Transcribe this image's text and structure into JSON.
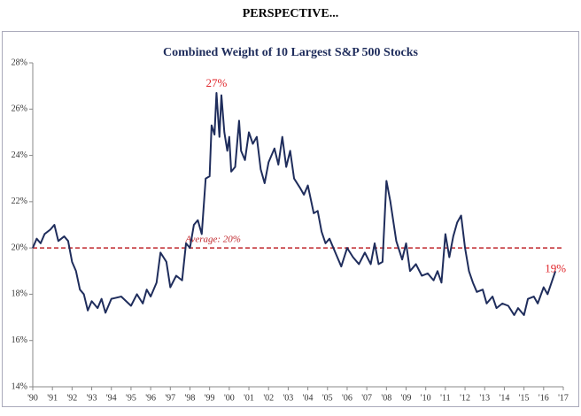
{
  "header": {
    "title": "PERSPECTIVE..."
  },
  "chart_data": {
    "type": "line",
    "title": "Combined Weight of 10 Largest S&P 500 Stocks",
    "xlim": [
      1990,
      2017
    ],
    "xticks": [
      {
        "value": 1990,
        "label": "'90"
      },
      {
        "value": 1991,
        "label": "'91"
      },
      {
        "value": 1992,
        "label": "'92"
      },
      {
        "value": 1993,
        "label": "'93"
      },
      {
        "value": 1994,
        "label": "'94"
      },
      {
        "value": 1995,
        "label": "'95"
      },
      {
        "value": 1996,
        "label": "'96"
      },
      {
        "value": 1997,
        "label": "'97"
      },
      {
        "value": 1998,
        "label": "'98"
      },
      {
        "value": 1999,
        "label": "'99"
      },
      {
        "value": 2000,
        "label": "'00"
      },
      {
        "value": 2001,
        "label": "'01"
      },
      {
        "value": 2002,
        "label": "'02"
      },
      {
        "value": 2003,
        "label": "'03"
      },
      {
        "value": 2004,
        "label": "'04"
      },
      {
        "value": 2005,
        "label": "'05"
      },
      {
        "value": 2006,
        "label": "'06"
      },
      {
        "value": 2007,
        "label": "'07"
      },
      {
        "value": 2008,
        "label": "'08"
      },
      {
        "value": 2009,
        "label": "'09"
      },
      {
        "value": 2010,
        "label": "'10"
      },
      {
        "value": 2011,
        "label": "'11"
      },
      {
        "value": 2012,
        "label": "'12"
      },
      {
        "value": 2013,
        "label": "'13"
      },
      {
        "value": 2014,
        "label": "'14"
      },
      {
        "value": 2015,
        "label": "'15"
      },
      {
        "value": 2016,
        "label": "'16"
      },
      {
        "value": 2017,
        "label": "'17"
      }
    ],
    "ylim": [
      14,
      28
    ],
    "yticks": [
      {
        "value": 14,
        "label": "14%"
      },
      {
        "value": 16,
        "label": "16%"
      },
      {
        "value": 18,
        "label": "18%"
      },
      {
        "value": 20,
        "label": "20%"
      },
      {
        "value": 22,
        "label": "22%"
      },
      {
        "value": 24,
        "label": "24%"
      },
      {
        "value": 26,
        "label": "26%"
      },
      {
        "value": 28,
        "label": "28%"
      }
    ],
    "x": [
      1990.0,
      1990.2,
      1990.4,
      1990.6,
      1990.9,
      1991.1,
      1991.3,
      1991.6,
      1991.8,
      1992.0,
      1992.2,
      1992.4,
      1992.6,
      1992.8,
      1993.0,
      1993.3,
      1993.5,
      1993.7,
      1994.0,
      1994.5,
      1995.0,
      1995.3,
      1995.6,
      1995.8,
      1996.0,
      1996.3,
      1996.5,
      1996.8,
      1997.0,
      1997.3,
      1997.6,
      1997.8,
      1998.0,
      1998.2,
      1998.4,
      1998.6,
      1998.8,
      1999.0,
      1999.1,
      1999.25,
      1999.35,
      1999.5,
      1999.6,
      1999.75,
      1999.9,
      2000.0,
      2000.1,
      2000.3,
      2000.5,
      2000.6,
      2000.8,
      2001.0,
      2001.2,
      2001.4,
      2001.6,
      2001.8,
      2002.0,
      2002.3,
      2002.5,
      2002.7,
      2002.9,
      2003.1,
      2003.3,
      2003.6,
      2003.8,
      2004.0,
      2004.3,
      2004.5,
      2004.7,
      2004.9,
      2005.1,
      2005.4,
      2005.7,
      2006.0,
      2006.3,
      2006.6,
      2006.9,
      2007.2,
      2007.4,
      2007.6,
      2007.8,
      2008.0,
      2008.2,
      2008.5,
      2008.8,
      2009.0,
      2009.2,
      2009.5,
      2009.8,
      2010.1,
      2010.4,
      2010.6,
      2010.8,
      2011.0,
      2011.2,
      2011.4,
      2011.6,
      2011.8,
      2012.0,
      2012.2,
      2012.4,
      2012.6,
      2012.9,
      2013.1,
      2013.4,
      2013.6,
      2013.9,
      2014.2,
      2014.5,
      2014.7,
      2015.0,
      2015.2,
      2015.5,
      2015.7,
      2016.0,
      2016.2,
      2016.4,
      2016.6
    ],
    "series": [
      {
        "color": "#1f2d5c",
        "values": [
          20.0,
          20.4,
          20.2,
          20.6,
          20.8,
          21.0,
          20.3,
          20.5,
          20.3,
          19.4,
          19.0,
          18.2,
          18.0,
          17.3,
          17.7,
          17.4,
          17.8,
          17.2,
          17.8,
          17.9,
          17.5,
          18.0,
          17.6,
          18.2,
          17.9,
          18.5,
          19.8,
          19.4,
          18.3,
          18.8,
          18.6,
          20.2,
          20.0,
          21.0,
          21.2,
          20.6,
          23.0,
          23.1,
          25.3,
          24.9,
          26.7,
          24.8,
          26.6,
          25.0,
          24.2,
          24.8,
          23.3,
          23.5,
          25.5,
          24.2,
          23.8,
          25.0,
          24.5,
          24.8,
          23.4,
          22.8,
          23.7,
          24.3,
          23.6,
          24.8,
          23.5,
          24.2,
          23.0,
          22.6,
          22.3,
          22.7,
          21.5,
          21.6,
          20.7,
          20.2,
          20.4,
          19.8,
          19.2,
          20.0,
          19.6,
          19.3,
          19.8,
          19.3,
          20.2,
          19.3,
          19.4,
          22.9,
          22.0,
          20.3,
          19.5,
          20.2,
          19.0,
          19.3,
          18.8,
          18.9,
          18.6,
          19.0,
          18.5,
          20.6,
          19.6,
          20.5,
          21.1,
          21.4,
          20.0,
          19.0,
          18.5,
          18.1,
          18.2,
          17.6,
          17.9,
          17.4,
          17.6,
          17.5,
          17.1,
          17.4,
          17.1,
          17.8,
          17.9,
          17.6,
          18.3,
          18.0,
          18.5,
          19.0
        ]
      }
    ],
    "average": {
      "value": 20,
      "label": "Average: 20%",
      "color": "#c0282d"
    },
    "annotations": [
      {
        "label": "27%",
        "x": 1999.35,
        "value": 27,
        "color": "#e0262b"
      },
      {
        "label": "19%",
        "x": 2016.6,
        "value": 19,
        "color": "#e0262b"
      }
    ]
  }
}
